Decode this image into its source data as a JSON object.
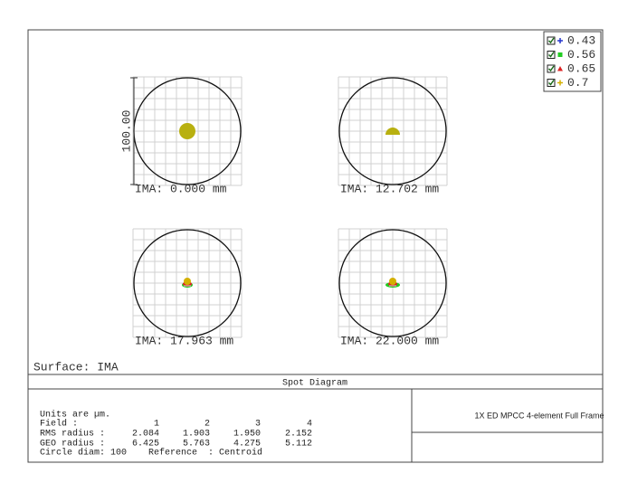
{
  "plots": [
    {
      "label": "IMA: 0.000 mm"
    },
    {
      "label": "IMA: 12.702 mm"
    },
    {
      "label": "IMA: 17.963 mm"
    },
    {
      "label": "IMA: 22.000 mm"
    }
  ],
  "scale_label": "100.00",
  "legend": [
    {
      "label": "0.43",
      "color": "#2233cc"
    },
    {
      "label": "0.56",
      "color": "#22cc22"
    },
    {
      "label": "0.65",
      "color": "#dd2222"
    },
    {
      "label": "0.7",
      "color": "#d4b000"
    }
  ],
  "surface": "Surface: IMA",
  "title": "Spot Diagram",
  "info": {
    "units": "Units are µm.",
    "rows": [
      {
        "label": "Field      :",
        "values": [
          "1",
          "2",
          "3",
          "4"
        ]
      },
      {
        "label": "RMS radius :",
        "values": [
          "2.084",
          "1.903",
          "1.950",
          "2.152"
        ]
      },
      {
        "label": "GEO radius :",
        "values": [
          "6.425",
          "5.763",
          "4.275",
          "5.112"
        ]
      }
    ],
    "footer": "Circle diam: 100    Reference  : Centroid"
  },
  "description": "1X ED MPCC 4-element Full Frame"
}
